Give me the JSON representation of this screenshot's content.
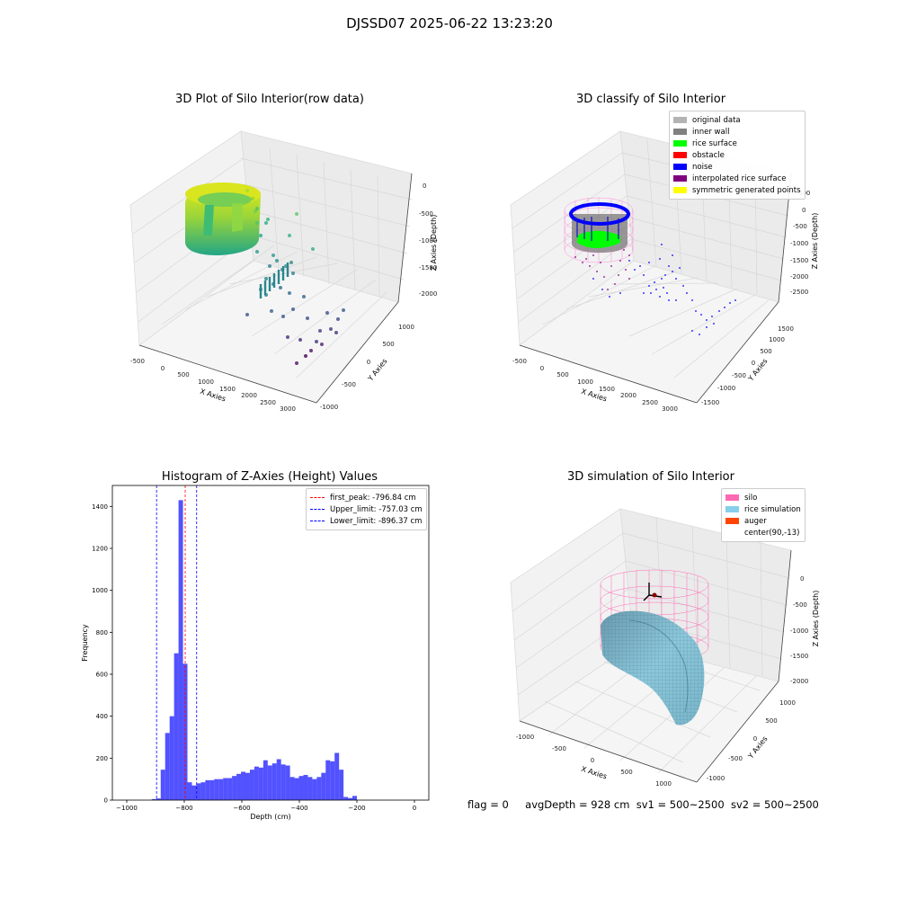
{
  "figure": {
    "suptitle": "DJSSD07 2025-06-22 13:23:20",
    "status": {
      "flag": "flag = 0",
      "avg_depth": "avgDepth = 928 cm",
      "sv1": "sv1 = 500~2500",
      "sv2": "sv2 = 500~2500"
    }
  },
  "chart_data": [
    {
      "type": "scatter",
      "title": "3D Plot of Silo Interior(row data)",
      "xlabel": "X Axies",
      "ylabel": "Y Axies",
      "zlabel": "Z Axies (Depth)",
      "x_ticks": [
        "-500",
        "0",
        "500",
        "1000",
        "1500",
        "2000",
        "2500",
        "3000"
      ],
      "y_ticks": [
        "-1000",
        "-500",
        "0",
        "500",
        "1000"
      ],
      "z_ticks": [
        "-2000",
        "-1500",
        "-1000",
        "-500",
        "0"
      ],
      "colormap": "viridis",
      "xlim": [
        -600,
        3200
      ],
      "ylim": [
        -1100,
        1200
      ],
      "zlim": [
        -2300,
        100
      ]
    },
    {
      "type": "scatter",
      "title": "3D classify of Silo Interior",
      "xlabel": "X Axies",
      "ylabel": "Y Axies",
      "zlabel": "Z Axies (Depth)",
      "x_ticks": [
        "-500",
        "0",
        "500",
        "1000",
        "1500",
        "2000",
        "2500",
        "3000"
      ],
      "y_ticks": [
        "-1500",
        "-1000",
        "-500",
        "0",
        "500",
        "1000",
        "1500"
      ],
      "z_ticks": [
        "-2500",
        "-2000",
        "-1500",
        "-1000",
        "-500",
        "0",
        "500"
      ],
      "legend_position": "upper-right",
      "legend": [
        {
          "label": "original data",
          "color": "#b3b3b3"
        },
        {
          "label": "inner wall",
          "color": "#808080"
        },
        {
          "label": "rice surface",
          "color": "#00ff00"
        },
        {
          "label": "obstacle",
          "color": "#ff0000"
        },
        {
          "label": "noise",
          "color": "#0000ff"
        },
        {
          "label": "interpolated rice surface",
          "color": "#800080"
        },
        {
          "label": "symmetric generated points",
          "color": "#ffff00"
        }
      ]
    },
    {
      "type": "bar",
      "title": "Histogram of Z-Axies (Height) Values",
      "xlabel": "Depth (cm)",
      "ylabel": "Frequency",
      "xlim": [
        -1050,
        50
      ],
      "ylim": [
        0,
        1500
      ],
      "x_ticks": [
        -1000,
        -800,
        -600,
        -400,
        -200,
        0
      ],
      "y_ticks": [
        0,
        200,
        400,
        600,
        800,
        1000,
        1200,
        1400
      ],
      "bar_color": "#0000ff",
      "bin_width": 15.5,
      "bins": [
        {
          "x": -913,
          "y": 5
        },
        {
          "x": -897.5,
          "y": 8
        },
        {
          "x": -882,
          "y": 145
        },
        {
          "x": -866.5,
          "y": 320
        },
        {
          "x": -851,
          "y": 400
        },
        {
          "x": -835.5,
          "y": 700
        },
        {
          "x": -820,
          "y": 1430
        },
        {
          "x": -804.5,
          "y": 650
        },
        {
          "x": -789,
          "y": 85
        },
        {
          "x": -773.5,
          "y": 70
        },
        {
          "x": -758,
          "y": 80
        },
        {
          "x": -742.5,
          "y": 85
        },
        {
          "x": -727,
          "y": 95
        },
        {
          "x": -711.5,
          "y": 95
        },
        {
          "x": -696,
          "y": 100
        },
        {
          "x": -680.5,
          "y": 100
        },
        {
          "x": -665,
          "y": 105
        },
        {
          "x": -649.5,
          "y": 105
        },
        {
          "x": -634,
          "y": 115
        },
        {
          "x": -618.5,
          "y": 125
        },
        {
          "x": -603,
          "y": 135
        },
        {
          "x": -587.5,
          "y": 130
        },
        {
          "x": -572,
          "y": 145
        },
        {
          "x": -556.5,
          "y": 160
        },
        {
          "x": -541,
          "y": 155
        },
        {
          "x": -525.5,
          "y": 190
        },
        {
          "x": -510,
          "y": 165
        },
        {
          "x": -494.5,
          "y": 175
        },
        {
          "x": -479,
          "y": 195
        },
        {
          "x": -463.5,
          "y": 170
        },
        {
          "x": -448,
          "y": 165
        },
        {
          "x": -432.5,
          "y": 110
        },
        {
          "x": -417,
          "y": 105
        },
        {
          "x": -401.5,
          "y": 115
        },
        {
          "x": -386,
          "y": 120
        },
        {
          "x": -370.5,
          "y": 110
        },
        {
          "x": -355,
          "y": 100
        },
        {
          "x": -339.5,
          "y": 110
        },
        {
          "x": -324,
          "y": 130
        },
        {
          "x": -308.5,
          "y": 190
        },
        {
          "x": -293,
          "y": 185
        },
        {
          "x": -277.5,
          "y": 225
        },
        {
          "x": -262,
          "y": 145
        },
        {
          "x": -246.5,
          "y": 15
        },
        {
          "x": -231,
          "y": 10
        },
        {
          "x": -215.5,
          "y": 20
        }
      ],
      "vlines": [
        {
          "label": "first_peak: -796.84 cm",
          "x": -796.84,
          "color": "#ff0000"
        },
        {
          "label": "Upper_limit: -757.03 cm",
          "x": -757.03,
          "color": "#0000ff"
        },
        {
          "label": "Lower_limit: -896.37 cm",
          "x": -896.37,
          "color": "#0000ff"
        }
      ],
      "legend_position": "upper-right"
    },
    {
      "type": "scatter",
      "title": "3D simulation of Silo Interior",
      "xlabel": "X Axies",
      "ylabel": "Y Axies",
      "zlabel": "Z Axies (Depth)",
      "x_ticks": [
        "-1000",
        "-500",
        "0",
        "500",
        "1000"
      ],
      "y_ticks": [
        "-1000",
        "-500",
        "0",
        "500",
        "1000"
      ],
      "z_ticks": [
        "-2000",
        "-1500",
        "-1000",
        "-500",
        "0"
      ],
      "legend_position": "upper-right",
      "legend": [
        {
          "label": "silo",
          "color": "#ff69b4"
        },
        {
          "label": "rice simulation",
          "color": "#87ceeb"
        },
        {
          "label": "auger",
          "color": "#ff4500"
        },
        {
          "label": "center(90,-13)",
          "color": "#ffffff"
        }
      ]
    }
  ]
}
